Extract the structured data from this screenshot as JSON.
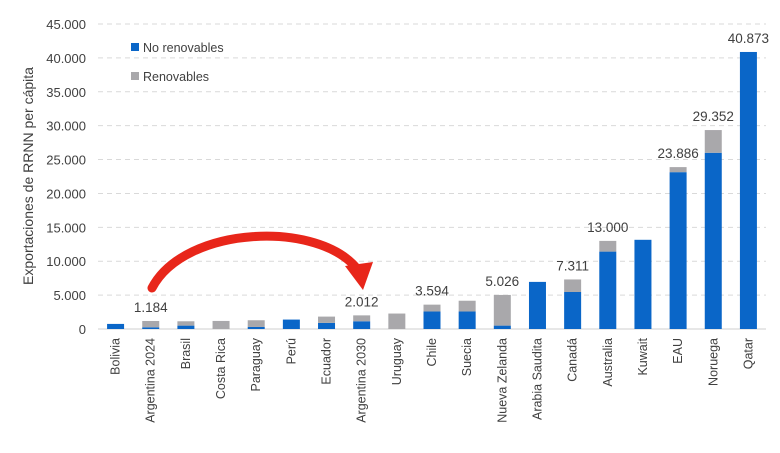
{
  "chart_data": {
    "type": "bar",
    "stacked": true,
    "xlabel": "",
    "ylabel": "Exportaciones de RRNN per cápita",
    "ylim": [
      0,
      45000
    ],
    "yticks": [
      "0",
      "5.000",
      "10.000",
      "15.000",
      "20.000",
      "25.000",
      "30.000",
      "35.000",
      "40.000",
      "45.000"
    ],
    "grid": "horizontal dashed",
    "legend_position": "top-left",
    "categories": [
      "Bolivia",
      "Argentina 2024",
      "Brasil",
      "Costa Rica",
      "Paraguay",
      "Perú",
      "Ecuador",
      "Argentina 2030",
      "Uruguay",
      "Chile",
      "Suecia",
      "Nueva Zelanda",
      "Arabia Saudita",
      "Canadá",
      "Australia",
      "Kuwait",
      "EAU",
      "Noruega",
      "Qatar"
    ],
    "series": [
      {
        "name": "No renovables",
        "color": "#0a66c8",
        "values": [
          750,
          250,
          500,
          0,
          300,
          1390,
          900,
          1140,
          0,
          2580,
          2580,
          500,
          6950,
          5460,
          11420,
          13160,
          23140,
          26000,
          40873
        ]
      },
      {
        "name": "Renovables",
        "color": "#a9a8ab",
        "values": [
          0,
          934,
          640,
          1190,
          990,
          0,
          930,
          872,
          2280,
          1014,
          1590,
          4526,
          0,
          1851,
          1580,
          0,
          746,
          3352,
          0
        ]
      }
    ],
    "data_labels": [
      {
        "category": "Argentina 2024",
        "text": "1.184"
      },
      {
        "category": "Argentina 2030",
        "text": "2.012"
      },
      {
        "category": "Chile",
        "text": "3.594"
      },
      {
        "category": "Nueva Zelanda",
        "text": "5.026"
      },
      {
        "category": "Canadá",
        "text": "7.311"
      },
      {
        "category": "Australia",
        "text": "13.000"
      },
      {
        "category": "EAU",
        "text": "23.886"
      },
      {
        "category": "Noruega",
        "text": "29.352"
      },
      {
        "category": "Qatar",
        "text": "40.873"
      }
    ],
    "annotation": {
      "type": "curved-arrow",
      "from": "Argentina 2024",
      "to": "Argentina 2030",
      "color": "#e8261a"
    }
  }
}
